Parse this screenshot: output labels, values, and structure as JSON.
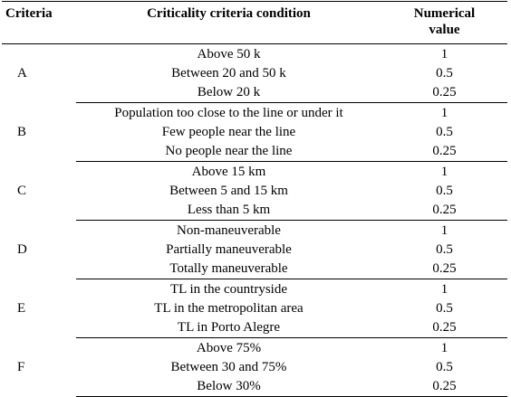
{
  "table": {
    "headers": {
      "criteria": "Criteria",
      "condition": "Criticality criteria condition",
      "value_line1": "Numerical",
      "value_line2": "value"
    },
    "groups": [
      {
        "label": "A",
        "rows": [
          {
            "condition": "Above 50 k",
            "value": "1"
          },
          {
            "condition": "Between 20 and 50 k",
            "value": "0.5"
          },
          {
            "condition": "Below 20 k",
            "value": "0.25"
          }
        ]
      },
      {
        "label": "B",
        "rows": [
          {
            "condition": "Population too close to the line or under it",
            "value": "1"
          },
          {
            "condition": "Few people near the line",
            "value": "0.5"
          },
          {
            "condition": "No people near the line",
            "value": "0.25"
          }
        ]
      },
      {
        "label": "C",
        "rows": [
          {
            "condition": "Above 15 km",
            "value": "1"
          },
          {
            "condition": "Between 5 and 15 km",
            "value": "0.5"
          },
          {
            "condition": "Less than 5 km",
            "value": "0.25"
          }
        ]
      },
      {
        "label": "D",
        "rows": [
          {
            "condition": "Non-maneuverable",
            "value": "1"
          },
          {
            "condition": "Partially maneuverable",
            "value": "0.5"
          },
          {
            "condition": "Totally maneuverable",
            "value": "0.25"
          }
        ]
      },
      {
        "label": "E",
        "rows": [
          {
            "condition": "TL in the countryside",
            "value": "1"
          },
          {
            "condition": "TL in the metropolitan area",
            "value": "0.5"
          },
          {
            "condition": "TL in Porto Alegre",
            "value": "0.25"
          }
        ]
      },
      {
        "label": "F",
        "rows": [
          {
            "condition": "Above 75%",
            "value": "1"
          },
          {
            "condition": "Between 30 and 75%",
            "value": "0.5"
          },
          {
            "condition": "Below 30%",
            "value": "0.25"
          }
        ]
      }
    ]
  }
}
